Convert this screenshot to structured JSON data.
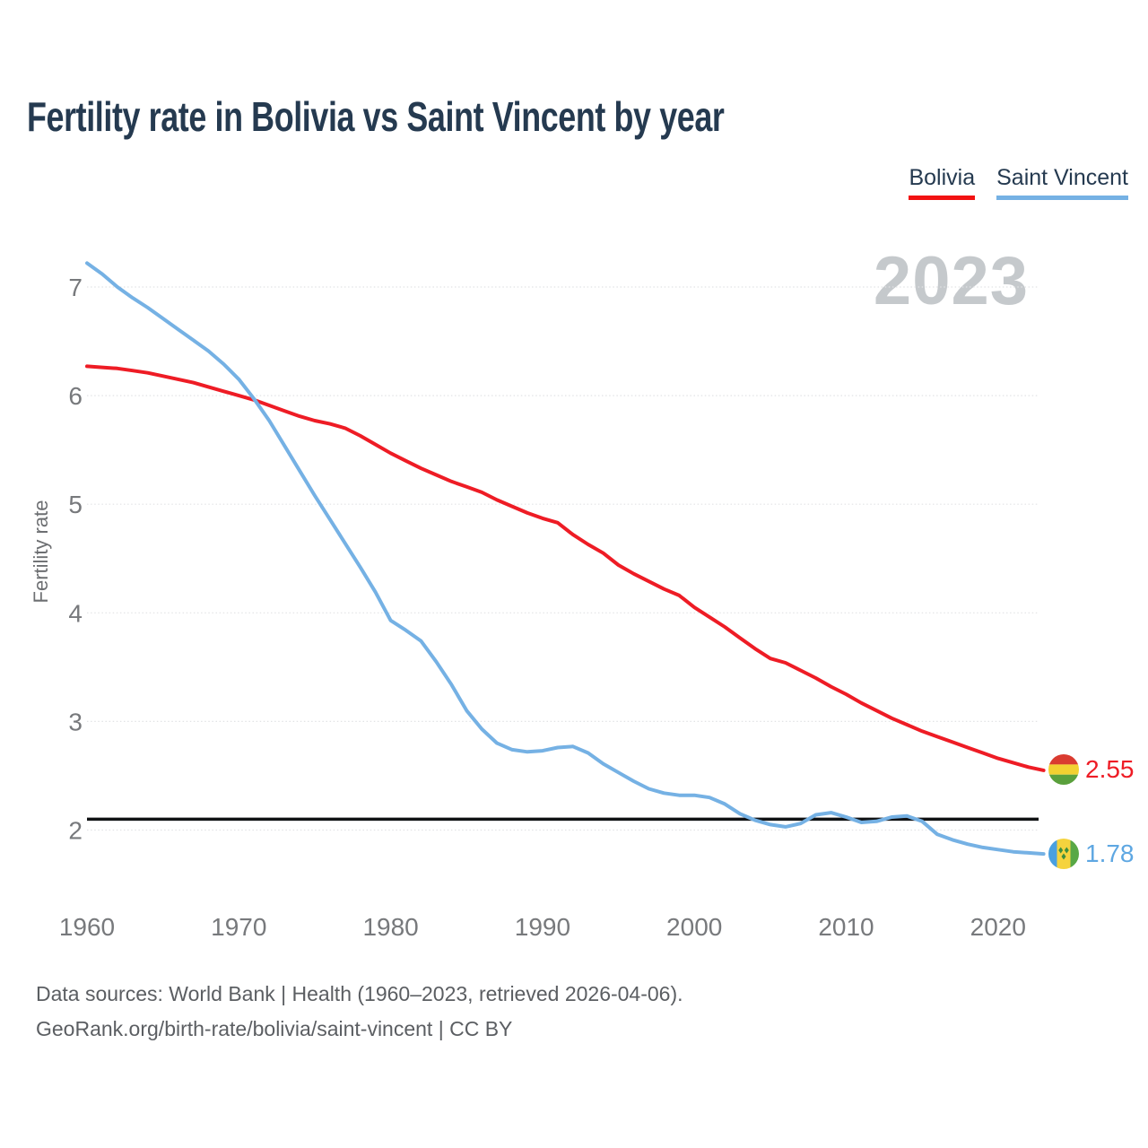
{
  "header": {
    "title": "Fertility rate in Bolivia vs Saint Vincent by year"
  },
  "legend": {
    "items": [
      {
        "label": "Bolivia",
        "color": "#f21212"
      },
      {
        "label": "Saint Vincent",
        "color": "#75b1e4"
      }
    ]
  },
  "watermark": "2023",
  "chart_data": {
    "type": "line",
    "title": "Fertility rate in Bolivia vs Saint Vincent by year",
    "xlabel": "",
    "ylabel": "Fertility rate",
    "xlim": [
      1960,
      2023
    ],
    "ylim": [
      1.7,
      7.35
    ],
    "grid": true,
    "x_ticks": [
      1960,
      1970,
      1980,
      1990,
      2000,
      2010,
      2020
    ],
    "y_ticks": [
      2,
      3,
      4,
      5,
      6,
      7
    ],
    "threshold": {
      "value": 2.1,
      "color": "#101214",
      "meaning": "replacement-level line drawn in black"
    },
    "years": [
      1960,
      1961,
      1962,
      1963,
      1964,
      1965,
      1966,
      1967,
      1968,
      1969,
      1970,
      1971,
      1972,
      1973,
      1974,
      1975,
      1976,
      1977,
      1978,
      1979,
      1980,
      1981,
      1982,
      1983,
      1984,
      1985,
      1986,
      1987,
      1988,
      1989,
      1990,
      1991,
      1992,
      1993,
      1994,
      1995,
      1996,
      1997,
      1998,
      1999,
      2000,
      2001,
      2002,
      2003,
      2004,
      2005,
      2006,
      2007,
      2008,
      2009,
      2010,
      2011,
      2012,
      2013,
      2014,
      2015,
      2016,
      2017,
      2018,
      2019,
      2020,
      2021,
      2022,
      2023
    ],
    "series": [
      {
        "name": "Bolivia",
        "color": "#ee1c25",
        "values": [
          6.27,
          6.26,
          6.25,
          6.23,
          6.21,
          6.18,
          6.15,
          6.12,
          6.08,
          6.04,
          6.0,
          5.96,
          5.91,
          5.86,
          5.81,
          5.77,
          5.74,
          5.7,
          5.63,
          5.55,
          5.47,
          5.4,
          5.33,
          5.27,
          5.21,
          5.16,
          5.11,
          5.04,
          4.98,
          4.92,
          4.87,
          4.83,
          4.72,
          4.63,
          4.55,
          4.44,
          4.36,
          4.29,
          4.22,
          4.16,
          4.05,
          3.96,
          3.87,
          3.77,
          3.67,
          3.58,
          3.54,
          3.47,
          3.4,
          3.32,
          3.25,
          3.17,
          3.1,
          3.03,
          2.97,
          2.91,
          2.86,
          2.81,
          2.76,
          2.71,
          2.66,
          2.62,
          2.58,
          2.55
        ]
      },
      {
        "name": "Saint Vincent",
        "color": "#75b1e4",
        "values": [
          7.22,
          7.12,
          7.0,
          6.9,
          6.81,
          6.71,
          6.61,
          6.51,
          6.41,
          6.29,
          6.15,
          5.97,
          5.77,
          5.54,
          5.31,
          5.08,
          4.86,
          4.64,
          4.42,
          4.19,
          3.93,
          3.84,
          3.74,
          3.55,
          3.34,
          3.1,
          2.93,
          2.8,
          2.74,
          2.72,
          2.73,
          2.76,
          2.77,
          2.71,
          2.61,
          2.53,
          2.45,
          2.38,
          2.34,
          2.32,
          2.32,
          2.3,
          2.24,
          2.15,
          2.09,
          2.05,
          2.03,
          2.06,
          2.14,
          2.16,
          2.12,
          2.07,
          2.08,
          2.12,
          2.13,
          2.08,
          1.96,
          1.91,
          1.87,
          1.84,
          1.82,
          1.8,
          1.79,
          1.78
        ]
      }
    ],
    "end_labels": {
      "bolivia": {
        "value": "2.55",
        "color": "#ee1c25"
      },
      "saint_vincent": {
        "value": "1.78",
        "color": "#5ea7e2"
      }
    },
    "legend_position": "top-right"
  },
  "axis": {
    "y_label": "Fertility rate"
  },
  "flags": {
    "bolivia": {
      "red": "#da3b30",
      "yellow": "#f2d131",
      "green": "#5aa03c"
    },
    "saint_vincent": {
      "blue": "#4aa0e0",
      "yellow": "#f5d33e",
      "green": "#58a846",
      "diamond": "#3e8e3e"
    }
  },
  "footer": {
    "line1": "Data sources: World Bank | Health (1960–2023, retrieved 2026-04-06).",
    "line2": "GeoRank.org/birth-rate/bolivia/saint-vincent | CC BY"
  }
}
